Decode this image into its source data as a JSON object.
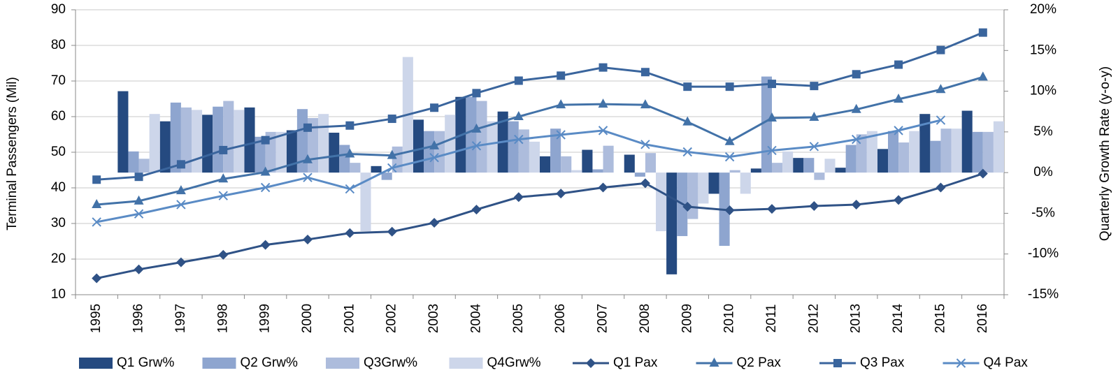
{
  "chart_data": {
    "type": "combo",
    "y_label": "Terminal Passengers (Mil)",
    "y2_label": "Quarterly Growth Rate (y-o-y)",
    "categories": [
      "1995",
      "1996",
      "1997",
      "1998",
      "1999",
      "2000",
      "2001",
      "2002",
      "2003",
      "2004",
      "2005",
      "2006",
      "2007",
      "2008",
      "2009",
      "2010",
      "2011",
      "2012",
      "2013",
      "2014",
      "2015",
      "2016"
    ],
    "ylim": [
      10,
      90
    ],
    "yticks": [
      10,
      20,
      30,
      40,
      50,
      60,
      70,
      80,
      90
    ],
    "y2lim": [
      -15,
      20
    ],
    "y2ticks": [
      {
        "value": -15,
        "label": "-15%"
      },
      {
        "value": -10,
        "label": "-10%"
      },
      {
        "value": -5,
        "label": "-5%"
      },
      {
        "value": 0,
        "label": "0%"
      },
      {
        "value": 5,
        "label": "5%"
      },
      {
        "value": 10,
        "label": "10%"
      },
      {
        "value": 15,
        "label": "15%"
      },
      {
        "value": 20,
        "label": "20%"
      }
    ],
    "grid": true,
    "legend": "bottom",
    "series": [
      {
        "name": "Q1 Grw%",
        "type": "bar",
        "axis": "y2",
        "color": "#254a80",
        "values": [
          null,
          10.0,
          6.3,
          7.1,
          8.0,
          5.2,
          4.9,
          0.8,
          6.5,
          9.3,
          7.5,
          2.0,
          2.8,
          2.2,
          -12.5,
          -2.6,
          0.5,
          1.8,
          0.6,
          2.9,
          7.2,
          7.6
        ]
      },
      {
        "name": "Q2 Grw%",
        "type": "bar",
        "axis": "y2",
        "color": "#8ea5cf",
        "values": [
          null,
          2.6,
          8.6,
          8.1,
          4.4,
          7.8,
          3.4,
          -0.9,
          5.1,
          9.3,
          6.3,
          5.4,
          0.4,
          -0.5,
          -7.8,
          -9.0,
          11.8,
          1.8,
          3.4,
          5.1,
          3.9,
          5.0
        ]
      },
      {
        "name": "Q3Grw%",
        "type": "bar",
        "axis": "y2",
        "color": "#adbcdc",
        "values": [
          null,
          1.7,
          8.0,
          8.8,
          5.0,
          6.7,
          1.2,
          3.2,
          5.1,
          8.8,
          5.3,
          2.0,
          3.3,
          2.4,
          -5.7,
          0.3,
          1.2,
          -0.9,
          4.7,
          3.7,
          5.4,
          5.0
        ]
      },
      {
        "name": "Q4Grw%",
        "type": "bar",
        "axis": "y2",
        "color": "#cdd6ea",
        "values": [
          null,
          7.2,
          7.7,
          7.7,
          5.0,
          7.2,
          -7.2,
          14.2,
          7.1,
          6.3,
          3.8,
          0.3,
          0.0,
          -7.2,
          -3.8,
          -2.6,
          2.6,
          1.7,
          5.1,
          5.1,
          5.4,
          6.3
        ]
      },
      {
        "name": "Q1 Pax",
        "type": "line",
        "marker": "diamond",
        "color": "#2f5286",
        "values": [
          14.6,
          17.1,
          19.1,
          21.2,
          24.0,
          25.5,
          27.3,
          27.7,
          30.2,
          33.9,
          37.4,
          38.4,
          40.1,
          41.3,
          34.7,
          33.7,
          34.1,
          34.9,
          35.3,
          36.6,
          40.1,
          44.0
        ]
      },
      {
        "name": "Q2 Pax",
        "type": "line",
        "marker": "triangle",
        "color": "#4272a8",
        "values": [
          35.3,
          36.3,
          39.2,
          42.5,
          44.4,
          47.9,
          49.5,
          49.1,
          51.8,
          56.5,
          60.0,
          63.3,
          63.5,
          63.3,
          58.5,
          53.0,
          59.6,
          59.8,
          62.0,
          64.9,
          67.6,
          71.1
        ]
      },
      {
        "name": "Q3 Pax",
        "type": "line",
        "marker": "square",
        "color": "#3a659d",
        "values": [
          42.3,
          43.1,
          46.6,
          50.6,
          53.4,
          56.9,
          57.5,
          59.4,
          62.5,
          66.6,
          70.1,
          71.5,
          73.8,
          72.5,
          68.4,
          68.4,
          69.2,
          68.6,
          71.9,
          74.6,
          78.7,
          83.6
        ]
      },
      {
        "name": "Q4 Pax",
        "type": "line",
        "marker": "x",
        "color": "#5a8bc5",
        "values": [
          30.4,
          32.7,
          35.3,
          37.8,
          40.1,
          42.9,
          39.7,
          45.6,
          48.5,
          51.8,
          53.6,
          54.9,
          56.1,
          52.2,
          50.1,
          48.7,
          50.5,
          51.6,
          53.6,
          56.1,
          59.0,
          null
        ]
      }
    ]
  }
}
